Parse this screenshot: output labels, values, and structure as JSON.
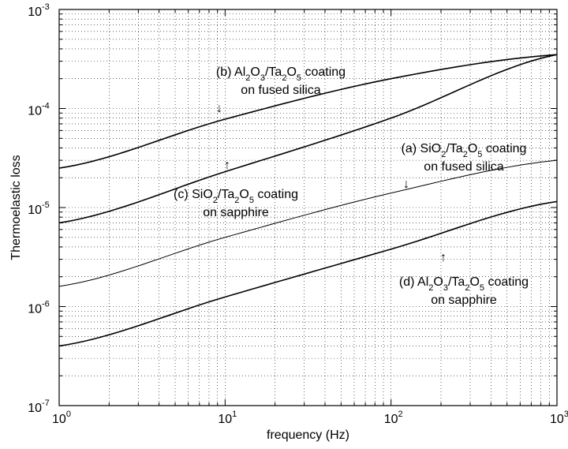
{
  "chart_data": {
    "type": "line",
    "xscale": "log",
    "yscale": "log",
    "xlim": [
      1,
      1000
    ],
    "ylim": [
      1e-07,
      0.001
    ],
    "grid": true,
    "xlabel": "frequency (Hz)",
    "ylabel": "Thermoelastic loss",
    "x_tick_labels": [
      {
        "base": "10",
        "exp": "0"
      },
      {
        "base": "10",
        "exp": "1"
      },
      {
        "base": "10",
        "exp": "2"
      },
      {
        "base": "10",
        "exp": "3"
      }
    ],
    "y_tick_labels": [
      {
        "base": "10",
        "exp": "-7"
      },
      {
        "base": "10",
        "exp": "-6"
      },
      {
        "base": "10",
        "exp": "-5"
      },
      {
        "base": "10",
        "exp": "-4"
      },
      {
        "base": "10",
        "exp": "-3"
      }
    ],
    "series": [
      {
        "id": "a",
        "x": [
          1,
          10,
          100,
          1000
        ],
        "y": [
          1.6e-06,
          5e-06,
          1.4e-05,
          3e-05
        ],
        "stroke_width": 1
      },
      {
        "id": "b",
        "x": [
          1,
          10,
          100,
          1000
        ],
        "y": [
          2.5e-05,
          7.8e-05,
          0.0002,
          0.00035
        ],
        "stroke_width": 1.6
      },
      {
        "id": "c",
        "x": [
          1,
          10,
          100,
          1000
        ],
        "y": [
          7e-06,
          2.3e-05,
          8e-05,
          0.00035
        ],
        "stroke_width": 1.6
      },
      {
        "id": "d",
        "x": [
          1,
          10,
          100,
          1000
        ],
        "y": [
          4e-07,
          1.25e-06,
          3.8e-06,
          1.15e-05
        ],
        "stroke_width": 1.6
      }
    ],
    "annotations": [
      {
        "id": "b",
        "lines": [
          [
            {
              "t": "(b) Al"
            },
            {
              "t": "2",
              "sub": true
            },
            {
              "t": "O"
            },
            {
              "t": "3",
              "sub": true
            },
            {
              "t": "/Ta"
            },
            {
              "t": "2",
              "sub": true
            },
            {
              "t": "O"
            },
            {
              "t": "5",
              "sub": true
            },
            {
              "t": " coating"
            }
          ],
          [
            {
              "t": "on fused silica"
            }
          ]
        ],
        "arrow": "↓"
      },
      {
        "id": "a",
        "lines": [
          [
            {
              "t": "(a) SiO"
            },
            {
              "t": "2",
              "sub": true
            },
            {
              "t": "/Ta"
            },
            {
              "t": "2",
              "sub": true
            },
            {
              "t": "O"
            },
            {
              "t": "5",
              "sub": true
            },
            {
              "t": " coating"
            }
          ],
          [
            {
              "t": "on fused silica"
            }
          ]
        ],
        "arrow": "↓"
      },
      {
        "id": "c",
        "lines": [
          [
            {
              "t": "(c) SiO"
            },
            {
              "t": "2",
              "sub": true
            },
            {
              "t": "/Ta"
            },
            {
              "t": "2",
              "sub": true
            },
            {
              "t": "O"
            },
            {
              "t": "5",
              "sub": true
            },
            {
              "t": " coating"
            }
          ],
          [
            {
              "t": "on sapphire"
            }
          ]
        ],
        "arrow": "↑"
      },
      {
        "id": "d",
        "lines": [
          [
            {
              "t": "(d) Al"
            },
            {
              "t": "2",
              "sub": true
            },
            {
              "t": "O"
            },
            {
              "t": "3",
              "sub": true
            },
            {
              "t": "/Ta"
            },
            {
              "t": "2",
              "sub": true
            },
            {
              "t": "O"
            },
            {
              "t": "5",
              "sub": true
            },
            {
              "t": " coating"
            }
          ],
          [
            {
              "t": "on sapphire"
            }
          ]
        ],
        "arrow": "↑"
      }
    ]
  }
}
